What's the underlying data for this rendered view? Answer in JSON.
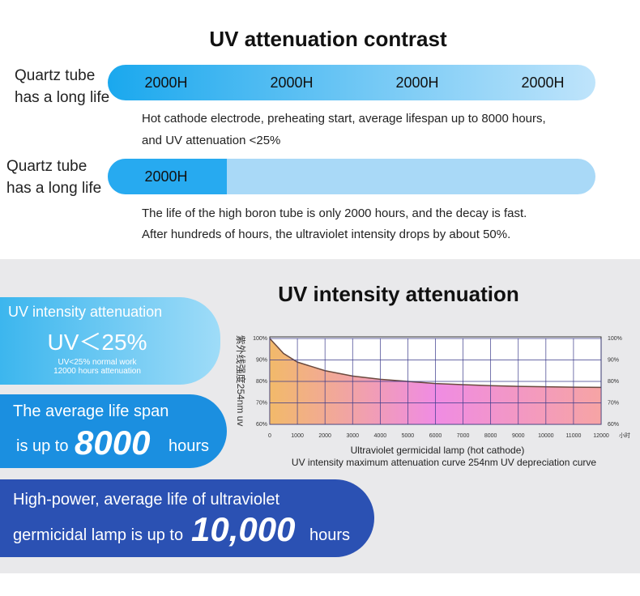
{
  "header": {
    "title": "UV attenuation contrast"
  },
  "comparison": [
    {
      "label": "Quartz tube has a long life",
      "segments": [
        "2000H",
        "2000H",
        "2000H",
        "2000H"
      ],
      "description": [
        "Hot cathode electrode, preheating start, average lifespan up to 8000 hours,",
        "and UV attenuation <25%"
      ]
    },
    {
      "label": "Quartz tube has a long life",
      "segments": [
        "2000H"
      ],
      "description": [
        "The life of the high boron tube is only 2000 hours, and the decay is fast.",
        "After hundreds of hours, the ultraviolet intensity drops by about 50%."
      ]
    }
  ],
  "cards": [
    {
      "title": "UV intensity attenuation",
      "headline": "UV＜25%",
      "note": "UV<25% normal work 12000 hours attenuation"
    },
    {
      "line1": "The average life span",
      "prefix": "is up to",
      "number": "8000",
      "suffix": "hours"
    },
    {
      "line1": "High-power, average life of ultraviolet",
      "prefix": "germicidal lamp is up to",
      "number": "10,000",
      "suffix": "hours"
    }
  ],
  "chart_data": {
    "type": "line",
    "title": "UV intensity attenuation",
    "caption": [
      "Ultraviolet germicidal lamp (hot cathode)",
      "UV intensity maximum attenuation curve 254nm UV depreciation curve"
    ],
    "y_label": "紫外线强度254nm uv",
    "x_unit": "小时",
    "x": [
      0,
      500,
      1000,
      1500,
      2000,
      3000,
      4000,
      5000,
      6000,
      7000,
      8000,
      9000,
      10000,
      11000,
      12000
    ],
    "values": [
      100,
      93,
      89,
      87,
      85,
      82.5,
      81,
      80,
      79,
      78.5,
      78,
      77.7,
      77.5,
      77.3,
      77.2
    ],
    "color": "#6b4a3e",
    "xlim": [
      0,
      12000
    ],
    "ylim": [
      60,
      100
    ],
    "xticks": [
      0,
      1000,
      2000,
      3000,
      4000,
      5000,
      6000,
      7000,
      8000,
      9000,
      10000,
      11000,
      12000
    ],
    "yticks": [
      {
        "value": 60,
        "label": "60%"
      },
      {
        "value": 70,
        "label": "70%"
      },
      {
        "value": 80,
        "label": "80%"
      },
      {
        "value": 90,
        "label": "90%"
      },
      {
        "value": 100,
        "label": "100%"
      }
    ],
    "grid": true
  }
}
